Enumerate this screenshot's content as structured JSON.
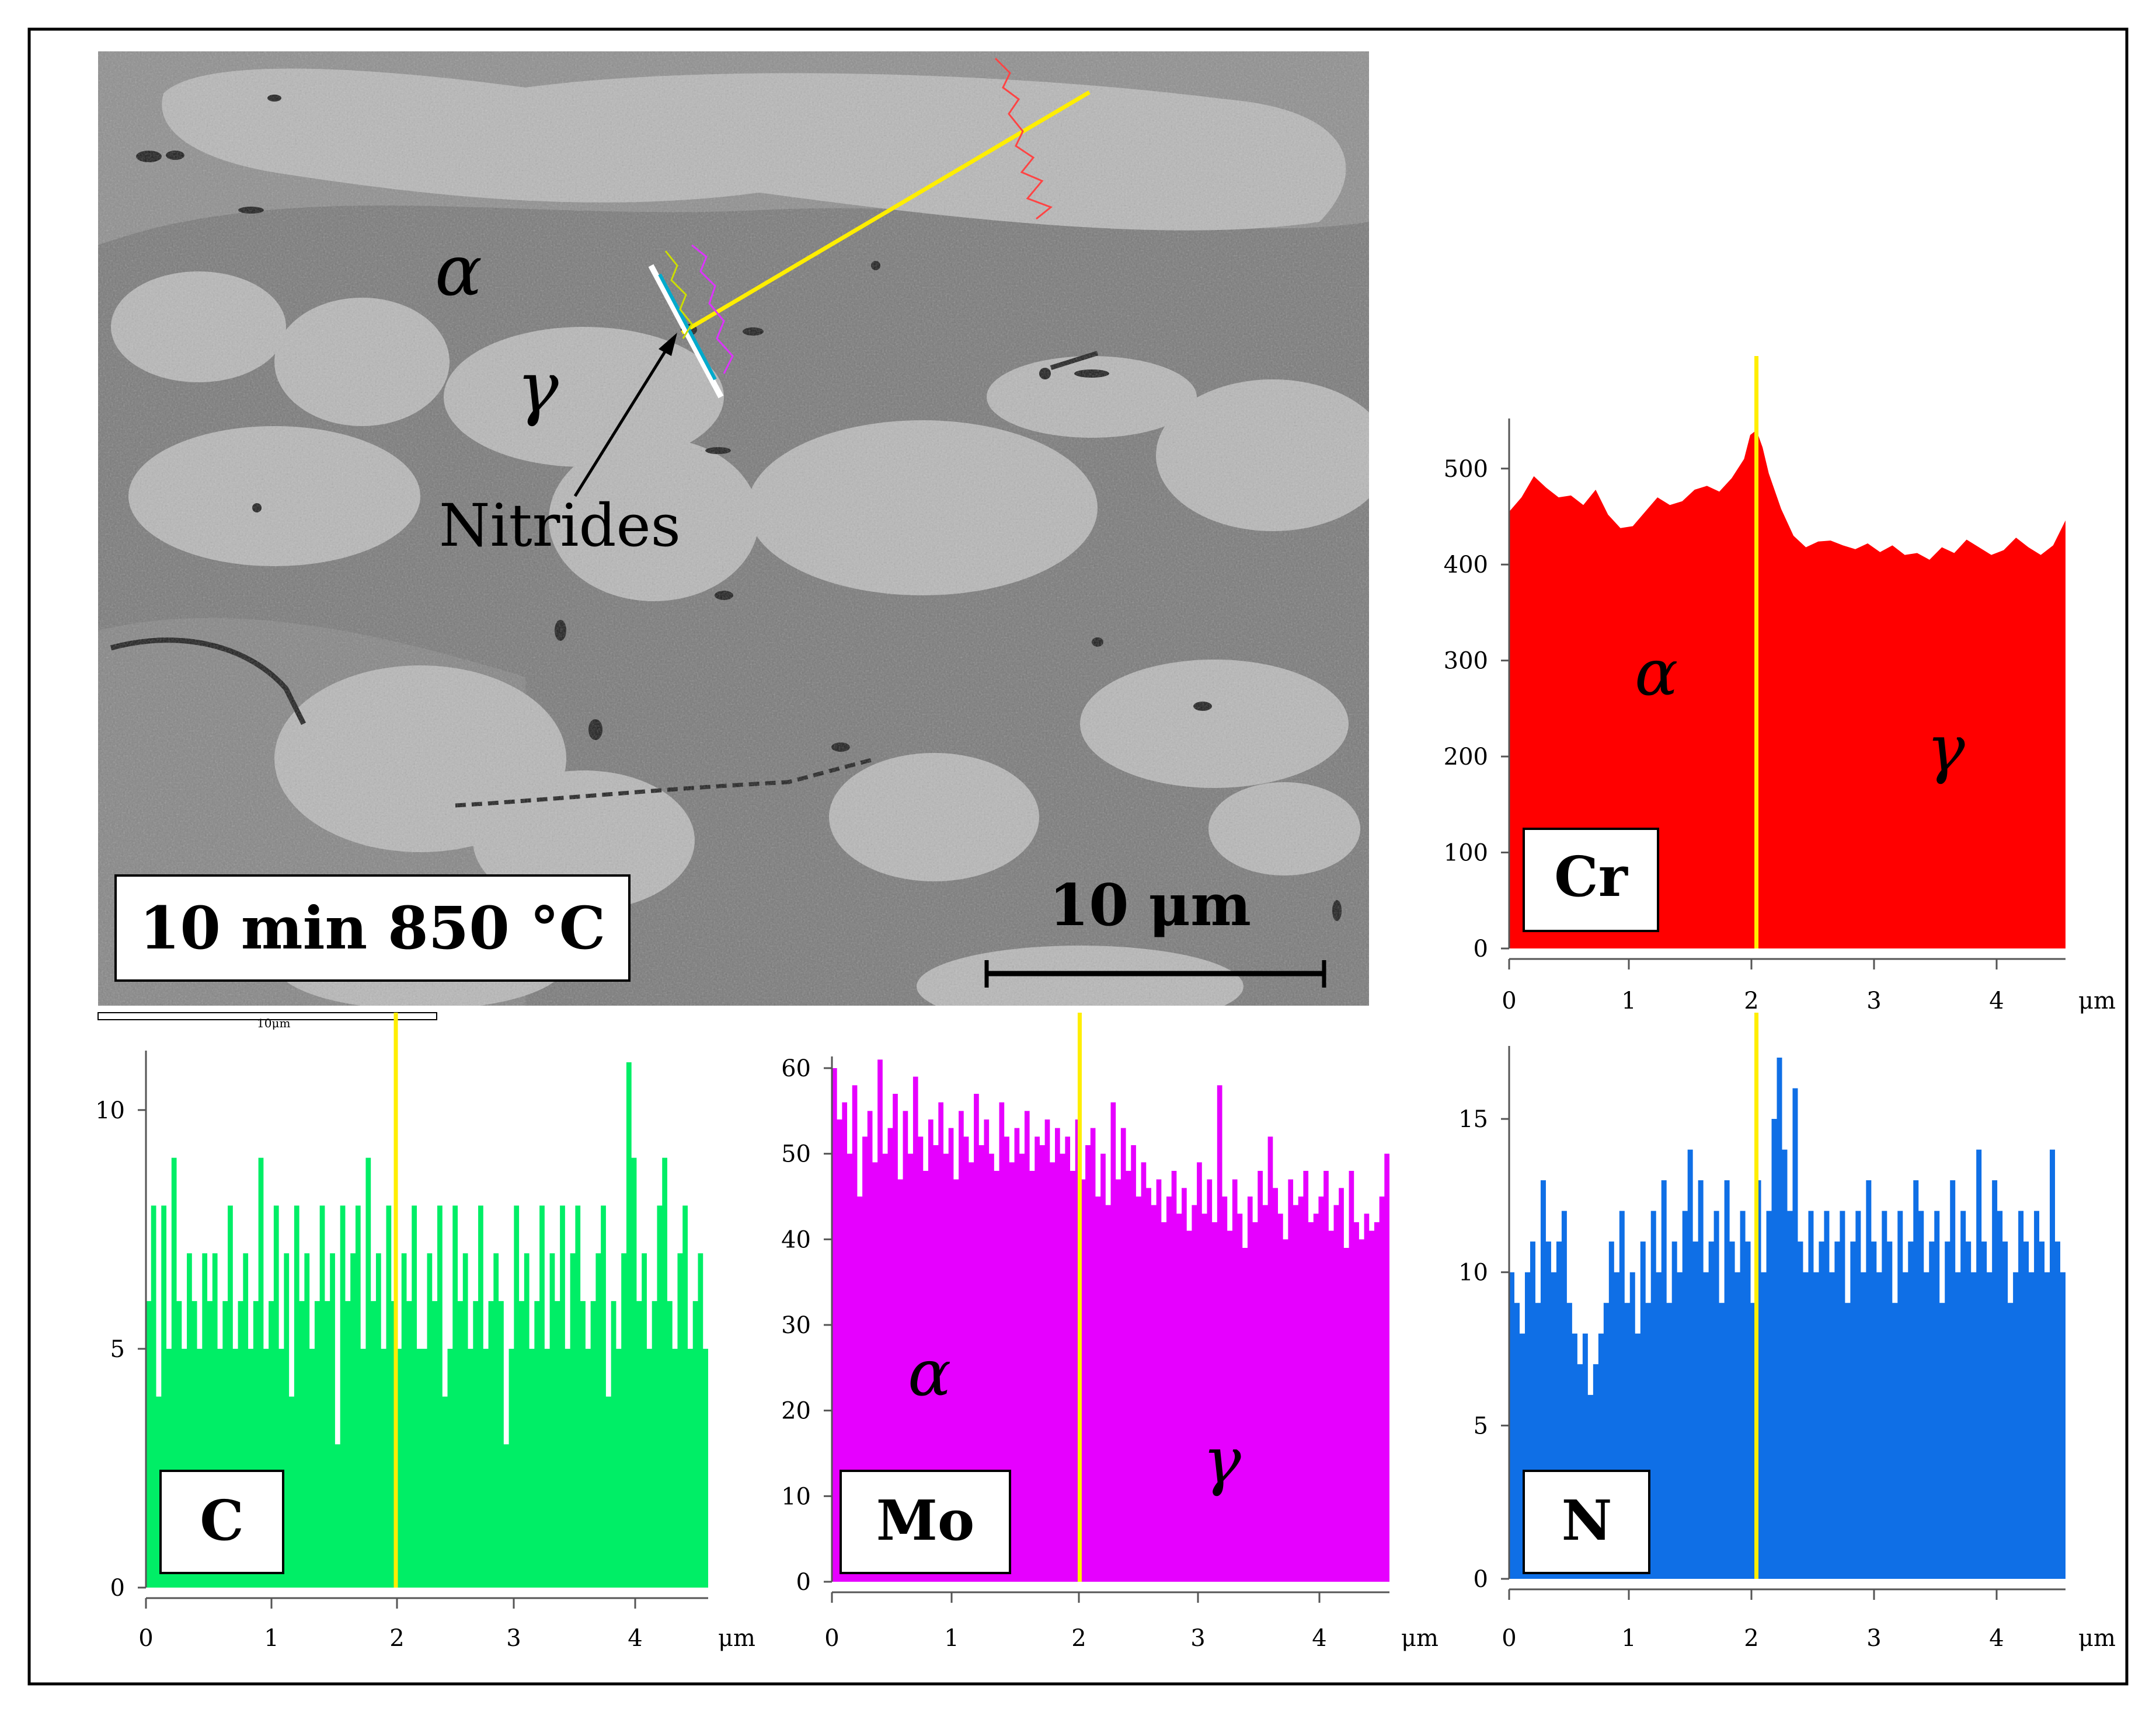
{
  "figure": {
    "micrograph": {
      "condition_label": "10 min 850 °C",
      "scale_bar_label": "10 μm",
      "mini_scale_label": "10μm",
      "phase_alpha": "α",
      "phase_gamma": "γ",
      "annotation": "Nitrides"
    },
    "unit_label": "μm"
  },
  "colors": {
    "cr": "#ff0000",
    "c": "#00ee66",
    "mo": "#e600ff",
    "n": "#0f6fe6",
    "marker": "#ffee00"
  },
  "chart_data": [
    {
      "id": "cr",
      "type": "area",
      "element_label": "Cr",
      "xlim": [
        0,
        4.5
      ],
      "ylim": [
        0,
        540
      ],
      "x_ticks": [
        0,
        1,
        2,
        3,
        4
      ],
      "y_ticks": [
        0,
        100,
        200,
        300,
        400,
        500
      ],
      "xlabel": "μm",
      "marker_x": 2.0,
      "phase_left": "α",
      "phase_right": "γ",
      "x": [
        0,
        0.1,
        0.2,
        0.3,
        0.4,
        0.5,
        0.6,
        0.7,
        0.8,
        0.9,
        1.0,
        1.1,
        1.2,
        1.3,
        1.4,
        1.5,
        1.6,
        1.7,
        1.8,
        1.9,
        1.95,
        2.0,
        2.05,
        2.1,
        2.2,
        2.3,
        2.4,
        2.5,
        2.6,
        2.7,
        2.8,
        2.9,
        3.0,
        3.1,
        3.2,
        3.3,
        3.4,
        3.5,
        3.6,
        3.7,
        3.8,
        3.9,
        4.0,
        4.1,
        4.2,
        4.3,
        4.4,
        4.5
      ],
      "values": [
        455,
        470,
        492,
        480,
        470,
        472,
        462,
        478,
        452,
        438,
        440,
        455,
        470,
        462,
        466,
        478,
        482,
        476,
        490,
        510,
        535,
        540,
        522,
        495,
        458,
        430,
        418,
        424,
        425,
        420,
        416,
        422,
        413,
        420,
        410,
        412,
        405,
        418,
        412,
        426,
        418,
        410,
        415,
        428,
        418,
        410,
        420,
        446
      ]
    },
    {
      "id": "c",
      "type": "bar",
      "element_label": "C",
      "xlim": [
        0,
        4.5
      ],
      "ylim": [
        0,
        11
      ],
      "x_ticks": [
        0,
        1,
        2,
        3,
        4
      ],
      "y_ticks": [
        0,
        5,
        10
      ],
      "xlabel": "μm",
      "marker_x": 2.0,
      "values": [
        6,
        8,
        4,
        8,
        5,
        9,
        6,
        5,
        7,
        6,
        5,
        7,
        6,
        7,
        5,
        6,
        8,
        5,
        6,
        7,
        5,
        6,
        9,
        5,
        6,
        8,
        5,
        7,
        4,
        8,
        6,
        7,
        5,
        6,
        8,
        6,
        7,
        3,
        8,
        6,
        7,
        8,
        5,
        9,
        6,
        7,
        5,
        8,
        6,
        5,
        7,
        6,
        8,
        5,
        5,
        7,
        6,
        8,
        4,
        5,
        8,
        6,
        7,
        5,
        6,
        8,
        5,
        6,
        7,
        6,
        3,
        5,
        8,
        6,
        7,
        5,
        6,
        8,
        5,
        7,
        6,
        8,
        5,
        7,
        8,
        6,
        5,
        6,
        7,
        8,
        4,
        6,
        5,
        7,
        11,
        9,
        6,
        7,
        5,
        6,
        8,
        9,
        6,
        5,
        7,
        8,
        5,
        6,
        7,
        5
      ]
    },
    {
      "id": "mo",
      "type": "bar",
      "element_label": "Mo",
      "xlim": [
        0,
        4.5
      ],
      "ylim": [
        0,
        60
      ],
      "x_ticks": [
        0,
        1,
        2,
        3,
        4
      ],
      "y_ticks": [
        0,
        10,
        20,
        30,
        40,
        50,
        60
      ],
      "xlabel": "μm",
      "marker_x": 2.0,
      "phase_left": "α",
      "phase_right": "γ",
      "values": [
        60,
        54,
        56,
        50,
        58,
        45,
        52,
        55,
        49,
        61,
        50,
        53,
        57,
        47,
        55,
        50,
        59,
        52,
        48,
        54,
        51,
        56,
        50,
        53,
        47,
        55,
        52,
        49,
        57,
        51,
        54,
        50,
        48,
        56,
        52,
        49,
        53,
        50,
        55,
        48,
        52,
        51,
        54,
        49,
        53,
        50,
        52,
        48,
        54,
        47,
        51,
        53,
        45,
        50,
        44,
        56,
        47,
        53,
        48,
        51,
        45,
        49,
        46,
        44,
        47,
        42,
        45,
        48,
        43,
        46,
        41,
        44,
        49,
        43,
        47,
        42,
        58,
        45,
        41,
        47,
        43,
        39,
        45,
        42,
        48,
        44,
        52,
        46,
        43,
        40,
        47,
        44,
        45,
        48,
        42,
        43,
        45,
        48,
        41,
        44,
        46,
        39,
        48,
        42,
        40,
        43,
        41,
        42,
        45,
        50
      ]
    },
    {
      "id": "n",
      "type": "bar",
      "element_label": "N",
      "xlim": [
        0,
        4.5
      ],
      "ylim": [
        0,
        17
      ],
      "x_ticks": [
        0,
        1,
        2,
        3,
        4
      ],
      "y_ticks": [
        0,
        5,
        10,
        15
      ],
      "xlabel": "μm",
      "marker_x": 2.0,
      "values": [
        10,
        9,
        8,
        10,
        11,
        9,
        13,
        11,
        10,
        11,
        12,
        9,
        8,
        7,
        8,
        6,
        7,
        8,
        9,
        11,
        10,
        12,
        9,
        10,
        8,
        11,
        9,
        12,
        10,
        13,
        9,
        11,
        10,
        12,
        14,
        11,
        13,
        10,
        11,
        12,
        9,
        13,
        11,
        10,
        12,
        11,
        9,
        13,
        10,
        12,
        15,
        17,
        14,
        12,
        16,
        11,
        10,
        12,
        10,
        11,
        12,
        10,
        11,
        12,
        9,
        11,
        12,
        10,
        13,
        11,
        10,
        12,
        11,
        9,
        12,
        10,
        11,
        13,
        12,
        10,
        11,
        12,
        9,
        11,
        13,
        10,
        12,
        11,
        10,
        14,
        11,
        10,
        13,
        12,
        11,
        9,
        10,
        12,
        11,
        10,
        12,
        11,
        10,
        14,
        11,
        10
      ]
    }
  ]
}
